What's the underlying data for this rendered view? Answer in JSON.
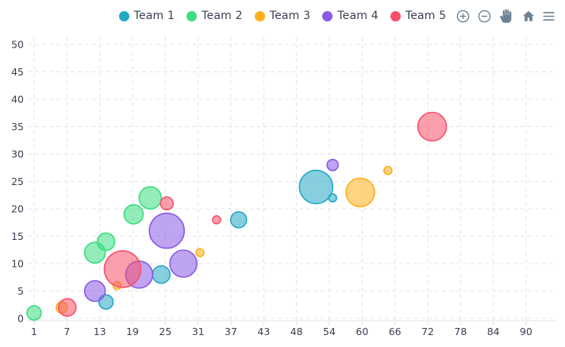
{
  "colors": {
    "text": "#3A3F51",
    "toolbar_icon": "#6E8192",
    "grid": "#E2E4EE",
    "axis_border": "#E3E3EE",
    "background": "#FFFFFF"
  },
  "toolbar": {
    "icons": [
      "zoom-in-icon",
      "zoom-out-icon",
      "pan-icon",
      "home-icon",
      "menu-icon"
    ]
  },
  "chart_data": {
    "type": "bubble",
    "title": "",
    "xlabel": "",
    "ylabel": "",
    "xlim": [
      1,
      90
    ],
    "ylim": [
      0,
      50
    ],
    "x_ticks": [
      1,
      7,
      13,
      19,
      25,
      31,
      37,
      43,
      48,
      54,
      60,
      66,
      72,
      78,
      84,
      90
    ],
    "y_ticks": [
      0,
      5,
      10,
      15,
      20,
      25,
      30,
      35,
      40,
      45,
      50
    ],
    "grid": "dashed",
    "legend_position": "top",
    "fill_opacity": 0.55,
    "series": [
      {
        "name": "Team 1",
        "color": "#25A8C4",
        "points": [
          {
            "x": 14,
            "y": 3,
            "r": 9
          },
          {
            "x": 24,
            "y": 8,
            "r": 11
          },
          {
            "x": 38,
            "y": 18,
            "r": 10
          },
          {
            "x": 52,
            "y": 24,
            "r": 21
          },
          {
            "x": 55,
            "y": 22,
            "r": 5
          }
        ]
      },
      {
        "name": "Team 2",
        "color": "#3BDD81",
        "points": [
          {
            "x": 1,
            "y": 1,
            "r": 9
          },
          {
            "x": 12,
            "y": 12,
            "r": 13
          },
          {
            "x": 14,
            "y": 14,
            "r": 11
          },
          {
            "x": 19,
            "y": 19,
            "r": 12
          },
          {
            "x": 22,
            "y": 22,
            "r": 14
          }
        ]
      },
      {
        "name": "Team 3",
        "color": "#FDB01C",
        "points": [
          {
            "x": 6,
            "y": 2,
            "r": 7
          },
          {
            "x": 16,
            "y": 6,
            "r": 5
          },
          {
            "x": 31,
            "y": 12,
            "r": 5
          },
          {
            "x": 60,
            "y": 23,
            "r": 18
          },
          {
            "x": 65,
            "y": 27,
            "r": 5
          }
        ]
      },
      {
        "name": "Team 4",
        "color": "#8A5AE6",
        "points": [
          {
            "x": 12,
            "y": 5,
            "r": 13
          },
          {
            "x": 20,
            "y": 8,
            "r": 17
          },
          {
            "x": 25,
            "y": 16,
            "r": 22
          },
          {
            "x": 28,
            "y": 10,
            "r": 17
          },
          {
            "x": 55,
            "y": 28,
            "r": 7
          }
        ]
      },
      {
        "name": "Team 5",
        "color": "#F8506A",
        "points": [
          {
            "x": 7,
            "y": 2,
            "r": 11
          },
          {
            "x": 17,
            "y": 9,
            "r": 23
          },
          {
            "x": 25,
            "y": 21,
            "r": 8
          },
          {
            "x": 34,
            "y": 18,
            "r": 5
          },
          {
            "x": 73,
            "y": 35,
            "r": 18
          }
        ]
      }
    ]
  }
}
